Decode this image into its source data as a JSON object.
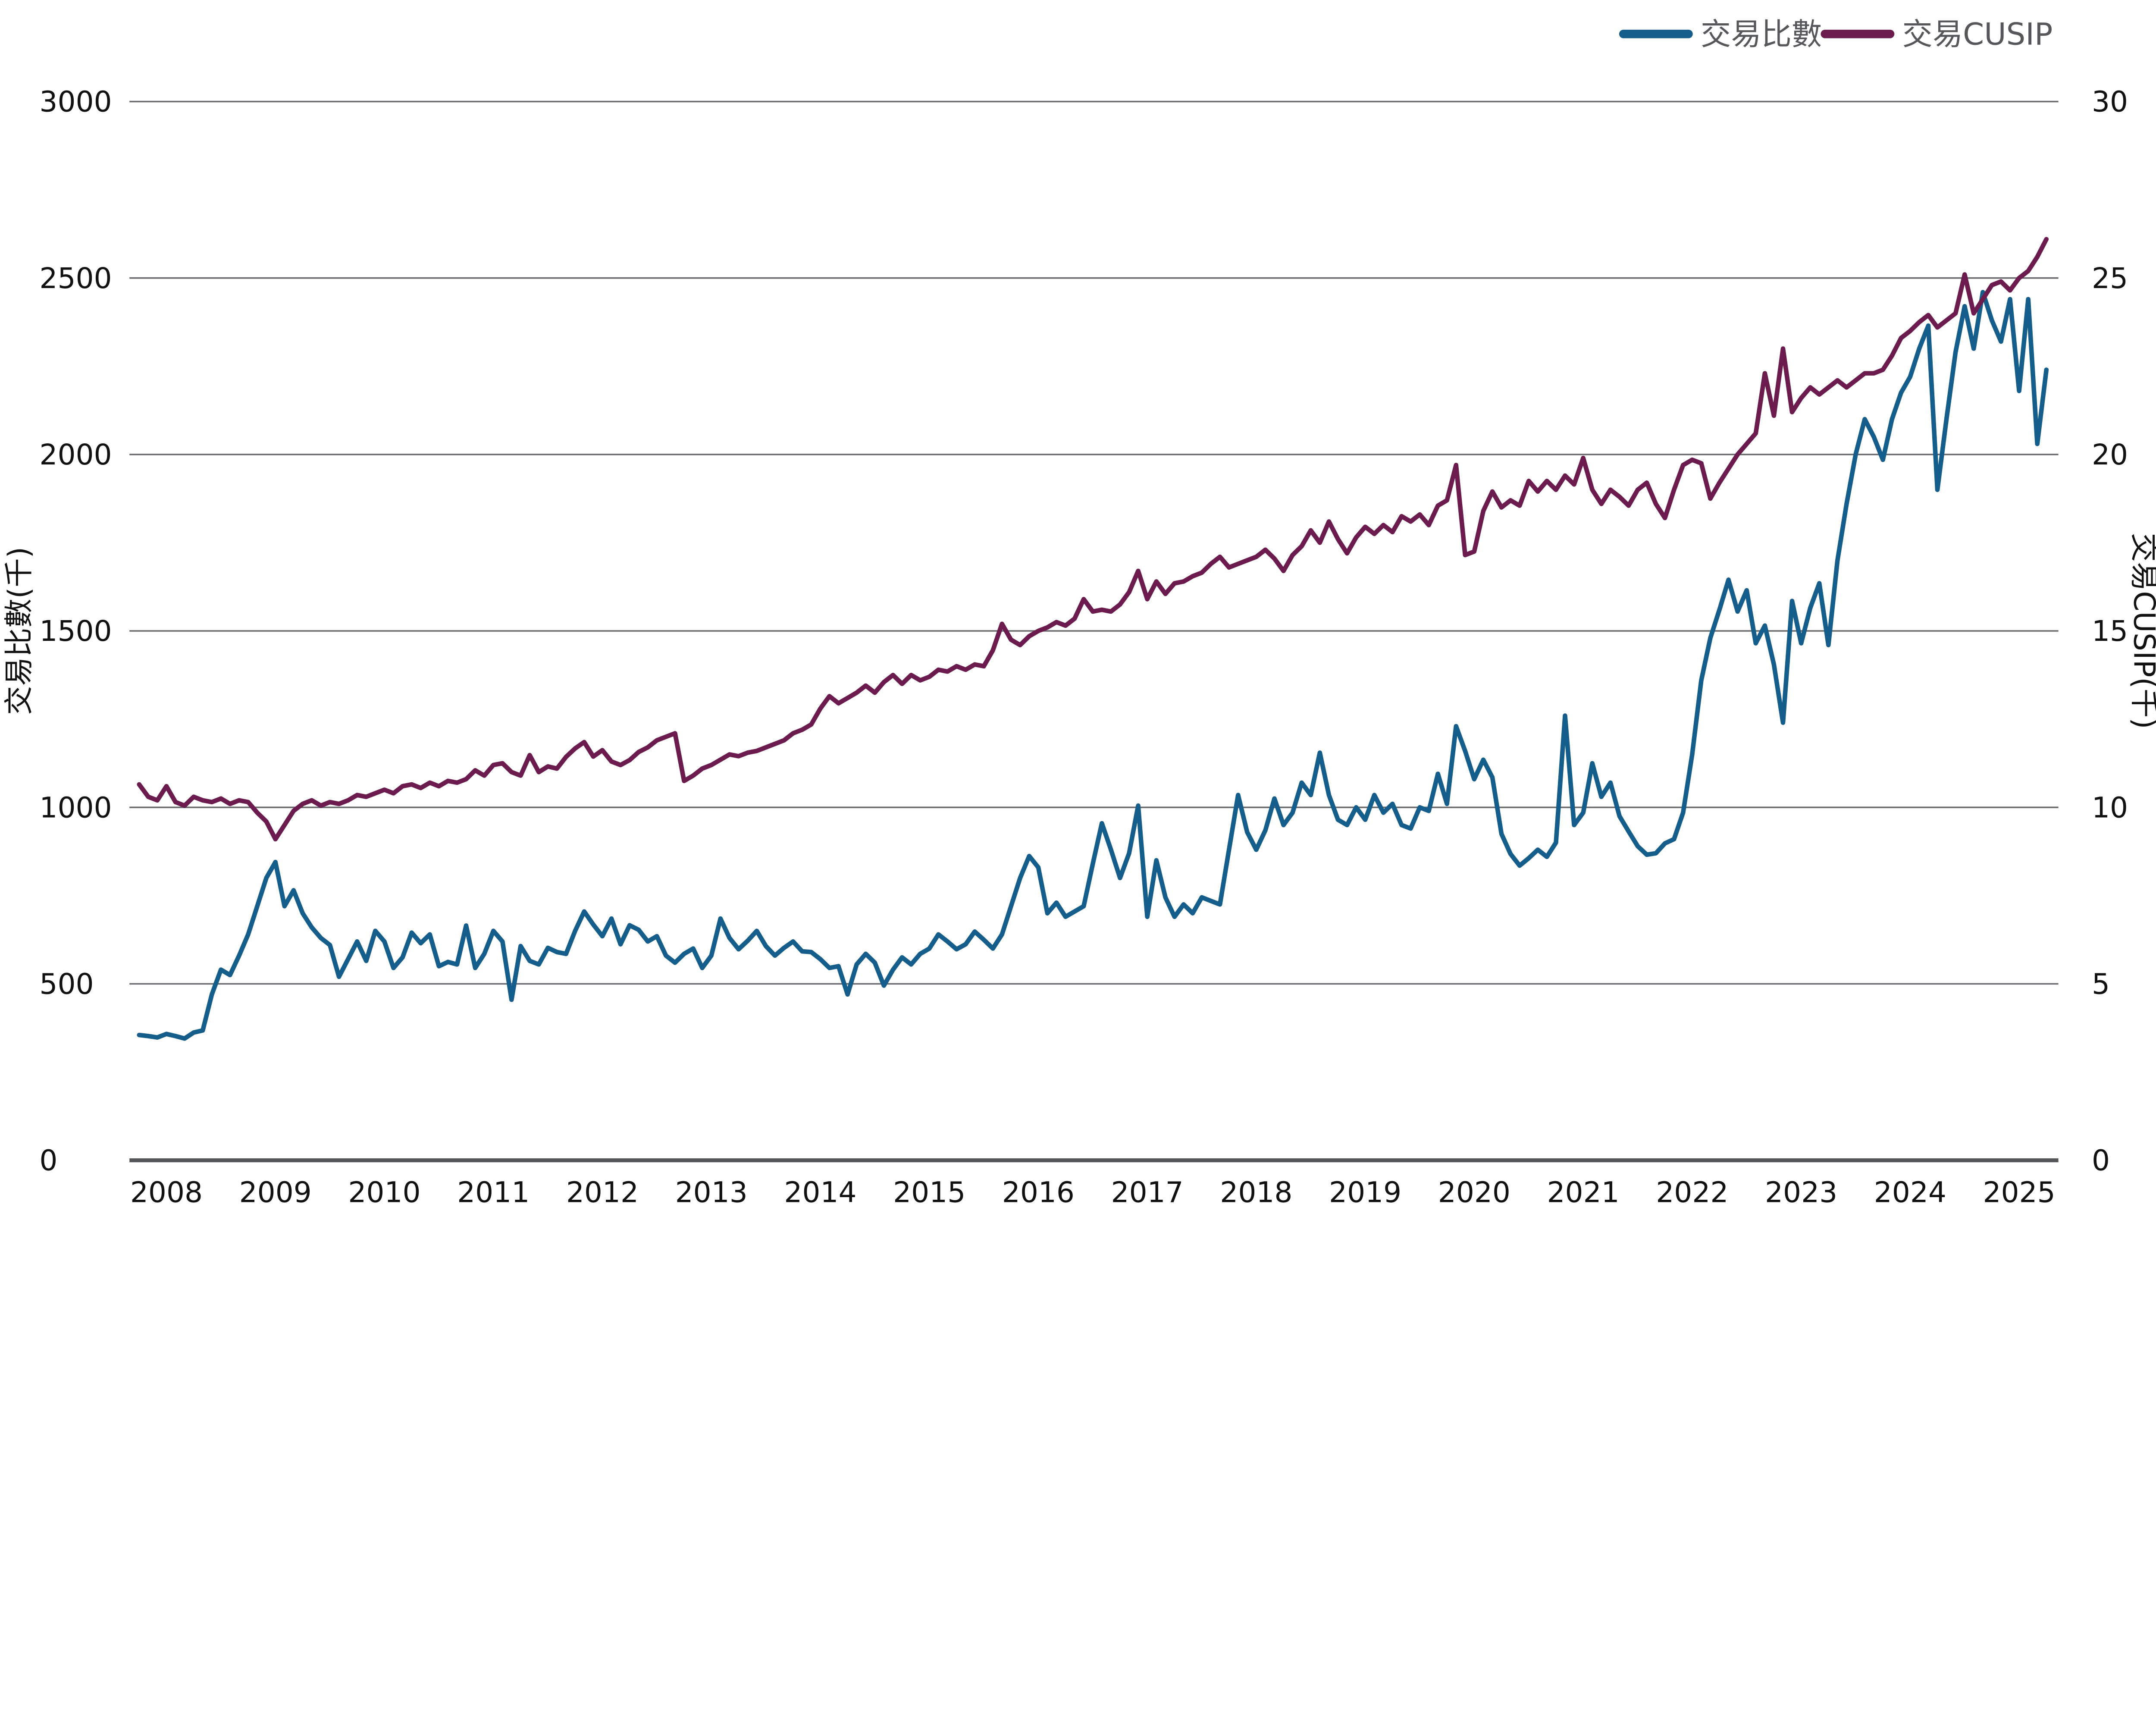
{
  "chart_data": {
    "type": "line",
    "granularity": "monthly",
    "start": "2007-10",
    "end": "2025-04",
    "legend": {
      "position": "top-right",
      "items": [
        "交易比數",
        "交易CUSIP"
      ]
    },
    "x_axis": {
      "tick_labels": [
        "2008",
        "2009",
        "2010",
        "2011",
        "2012",
        "2013",
        "2014",
        "2015",
        "2016",
        "2017",
        "2018",
        "2019",
        "2020",
        "2021",
        "2022",
        "2023",
        "2024",
        "2025"
      ]
    },
    "left_axis": {
      "label": "交易比數(千)",
      "ticks": [
        0,
        500,
        1000,
        1500,
        2000,
        2500,
        3000
      ],
      "range": [
        0,
        3000
      ]
    },
    "right_axis": {
      "label": "交易CUSIP(千)",
      "ticks": [
        0,
        5,
        10,
        15,
        20,
        25,
        30
      ],
      "range": [
        0,
        30
      ]
    },
    "grid": "horizontal",
    "colors": {
      "blue_series": "#155d8a",
      "purple_series": "#6b1b4e",
      "gridline": "#6a6b6e",
      "axis_line": "#54565a",
      "tick_text": "#111111",
      "legend_text": "#55575b"
    },
    "series": [
      {
        "name": "交易比數",
        "axis": "left",
        "color": "#155d8a",
        "values": [
          355,
          352,
          348,
          358,
          352,
          345,
          362,
          368,
          470,
          540,
          525,
          580,
          640,
          720,
          800,
          845,
          720,
          765,
          700,
          660,
          630,
          610,
          520,
          570,
          620,
          565,
          650,
          620,
          545,
          575,
          645,
          615,
          640,
          550,
          562,
          555,
          665,
          545,
          585,
          650,
          620,
          455,
          607,
          565,
          555,
          602,
          590,
          585,
          650,
          705,
          668,
          635,
          685,
          612,
          666,
          653,
          620,
          635,
          580,
          560,
          585,
          600,
          545,
          580,
          685,
          630,
          598,
          622,
          650,
          607,
          580,
          602,
          620,
          592,
          590,
          570,
          545,
          550,
          470,
          555,
          585,
          560,
          495,
          540,
          575,
          555,
          585,
          600,
          640,
          620,
          598,
          612,
          648,
          625,
          600,
          640,
          720,
          800,
          862,
          830,
          700,
          730,
          690,
          705,
          720,
          840,
          955,
          880,
          800,
          870,
          1005,
          690,
          850,
          745,
          690,
          725,
          700,
          745,
          735,
          725,
          880,
          1035,
          930,
          880,
          935,
          1025,
          950,
          985,
          1070,
          1035,
          1155,
          1035,
          965,
          950,
          1000,
          965,
          1035,
          985,
          1010,
          950,
          940,
          1000,
          990,
          1095,
          1010,
          1230,
          1160,
          1080,
          1135,
          1085,
          925,
          868,
          835,
          856,
          880,
          860,
          900,
          1260,
          950,
          985,
          1125,
          1030,
          1070,
          975,
          932,
          890,
          866,
          870,
          898,
          910,
          985,
          1150,
          1360,
          1480,
          1560,
          1645,
          1555,
          1615,
          1465,
          1515,
          1405,
          1240,
          1585,
          1465,
          1565,
          1635,
          1460,
          1700,
          1860,
          2000,
          2100,
          2050,
          1985,
          2100,
          2175,
          2220,
          2300,
          2365,
          1900,
          2100,
          2290,
          2420,
          2300,
          2460,
          2380,
          2320,
          2440,
          2180,
          2440,
          2030,
          2240
        ]
      },
      {
        "name": "交易CUSIP",
        "axis": "right",
        "color": "#6b1b4e",
        "values": [
          10.65,
          10.3,
          10.2,
          10.6,
          10.15,
          10.05,
          10.3,
          10.2,
          10.15,
          10.25,
          10.1,
          10.2,
          10.15,
          9.85,
          9.6,
          9.1,
          9.5,
          9.9,
          10.1,
          10.2,
          10.05,
          10.15,
          10.1,
          10.2,
          10.35,
          10.3,
          10.4,
          10.5,
          10.4,
          10.6,
          10.65,
          10.55,
          10.7,
          10.6,
          10.75,
          10.7,
          10.8,
          11.05,
          10.9,
          11.2,
          11.25,
          11.0,
          10.9,
          11.48,
          11.0,
          11.16,
          11.1,
          11.43,
          11.67,
          11.85,
          11.44,
          11.62,
          11.3,
          11.2,
          11.34,
          11.57,
          11.7,
          11.9,
          12.0,
          12.1,
          10.75,
          10.9,
          11.1,
          11.2,
          11.35,
          11.5,
          11.45,
          11.55,
          11.6,
          11.7,
          11.8,
          11.9,
          12.1,
          12.2,
          12.35,
          12.8,
          13.15,
          12.95,
          13.1,
          13.25,
          13.45,
          13.25,
          13.55,
          13.75,
          13.5,
          13.75,
          13.6,
          13.7,
          13.9,
          13.85,
          14.0,
          13.9,
          14.05,
          14.0,
          14.45,
          15.2,
          14.75,
          14.6,
          14.85,
          15.0,
          15.1,
          15.25,
          15.15,
          15.35,
          15.9,
          15.55,
          15.6,
          15.55,
          15.75,
          16.1,
          16.7,
          15.9,
          16.4,
          16.05,
          16.35,
          16.4,
          16.55,
          16.65,
          16.9,
          17.1,
          16.8,
          16.9,
          17.0,
          17.1,
          17.3,
          17.05,
          16.7,
          17.15,
          17.4,
          17.85,
          17.5,
          18.1,
          17.6,
          17.2,
          17.65,
          17.95,
          17.75,
          18.0,
          17.8,
          18.25,
          18.1,
          18.3,
          18.0,
          18.55,
          18.7,
          19.7,
          17.15,
          17.25,
          18.4,
          18.95,
          18.5,
          18.7,
          18.55,
          19.25,
          18.95,
          19.25,
          19.0,
          19.4,
          19.15,
          19.9,
          19.0,
          18.6,
          19.0,
          18.8,
          18.55,
          19.0,
          19.2,
          18.6,
          18.2,
          19.0,
          19.7,
          19.85,
          19.75,
          18.75,
          19.2,
          19.6,
          20.0,
          20.3,
          20.6,
          22.3,
          21.1,
          23.0,
          21.2,
          21.6,
          21.9,
          21.7,
          21.9,
          22.1,
          21.9,
          22.1,
          22.3,
          22.3,
          22.4,
          22.8,
          23.3,
          23.5,
          23.75,
          23.95,
          23.6,
          23.8,
          24.0,
          25.1,
          24.0,
          24.4,
          24.8,
          24.9,
          24.65,
          25.0,
          25.2,
          25.6,
          26.1
        ]
      }
    ]
  }
}
